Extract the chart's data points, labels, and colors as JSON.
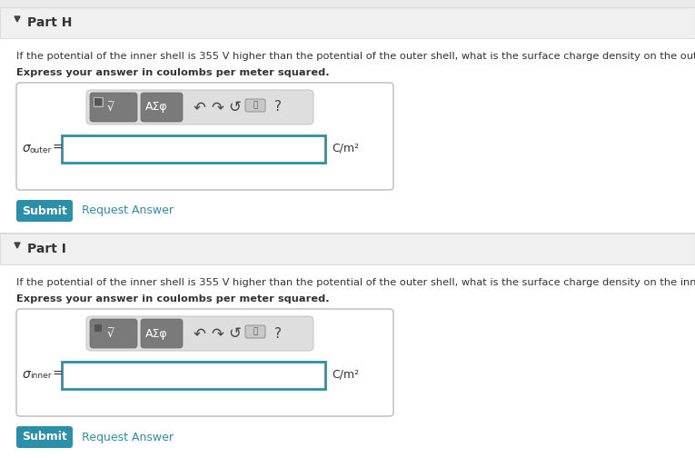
{
  "bg_outer": "#f0f0f0",
  "bg_white": "#ffffff",
  "bg_header": "#f5f5f5",
  "bg_section_sep": "#e8e8e8",
  "teal_btn": "#2a8fa8",
  "teal_link": "#2a8fa8",
  "teal_input_border": "#2a8fa8",
  "dark_text": "#333333",
  "toolbar_bg": "#e0e0e0",
  "toolbar_icon_bg": "#888888",
  "toolbar_icon2_bg": "#888888",
  "border_color": "#cccccc",
  "part_h_title": "Part H",
  "part_i_title": "Part I",
  "part_h_question": "If the potential of the inner shell is 355 V higher than the potential of the outer shell, what is the surface charge density on the outer shell?",
  "part_i_question": "If the potential of the inner shell is 355 V higher than the potential of the outer shell, what is the surface charge density on the inner shell?",
  "express_text": "Express your answer in coulombs per meter squared.",
  "submit_text": "Submit",
  "request_text": "Request Answer",
  "unit": "C/m²"
}
